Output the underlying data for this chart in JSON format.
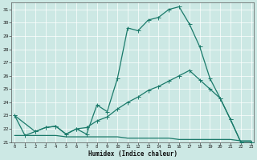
{
  "xlabel": "Humidex (Indice chaleur)",
  "bg_color": "#cce8e4",
  "line_color": "#1a7a6a",
  "grid_color": "#ffffff",
  "xlim": [
    0,
    23
  ],
  "ylim": [
    21,
    31.5
  ],
  "ytick_min": 21,
  "ytick_max": 31,
  "xticks": [
    0,
    1,
    2,
    3,
    4,
    5,
    6,
    7,
    8,
    9,
    10,
    11,
    12,
    13,
    14,
    15,
    16,
    17,
    18,
    19,
    20,
    21,
    22,
    23
  ],
  "yticks": [
    21,
    22,
    23,
    24,
    25,
    26,
    27,
    28,
    29,
    30,
    31
  ],
  "curve1_x": [
    0,
    1,
    2,
    3,
    4,
    5,
    6,
    7,
    8,
    9,
    10,
    11,
    12,
    13,
    14,
    15,
    16,
    17,
    18,
    19,
    20,
    21,
    22,
    23
  ],
  "curve1_y": [
    23.0,
    21.5,
    21.8,
    22.1,
    22.2,
    21.6,
    22.0,
    21.6,
    23.8,
    23.3,
    25.8,
    29.6,
    29.4,
    30.2,
    30.4,
    31.0,
    31.2,
    29.9,
    28.2,
    25.8,
    24.3,
    22.7,
    21.0,
    21.0
  ],
  "curve2_x": [
    0,
    2,
    3,
    4,
    5,
    6,
    7,
    8,
    9,
    10,
    11,
    12,
    13,
    14,
    15,
    16,
    17,
    18,
    19,
    20,
    21,
    22,
    23
  ],
  "curve2_y": [
    23.0,
    21.8,
    22.1,
    22.2,
    21.6,
    22.0,
    22.1,
    22.6,
    22.9,
    23.5,
    24.0,
    24.4,
    24.9,
    25.2,
    25.6,
    26.0,
    26.4,
    25.7,
    25.0,
    24.3,
    22.7,
    21.0,
    21.0
  ],
  "curve3_x": [
    0,
    1,
    2,
    3,
    4,
    5,
    6,
    7,
    8,
    9,
    10,
    11,
    12,
    13,
    14,
    15,
    16,
    17,
    18,
    19,
    20,
    21,
    22,
    23
  ],
  "curve3_y": [
    21.5,
    21.5,
    21.5,
    21.5,
    21.5,
    21.4,
    21.4,
    21.4,
    21.4,
    21.4,
    21.4,
    21.3,
    21.3,
    21.3,
    21.3,
    21.3,
    21.2,
    21.2,
    21.2,
    21.2,
    21.2,
    21.2,
    21.1,
    21.1
  ]
}
